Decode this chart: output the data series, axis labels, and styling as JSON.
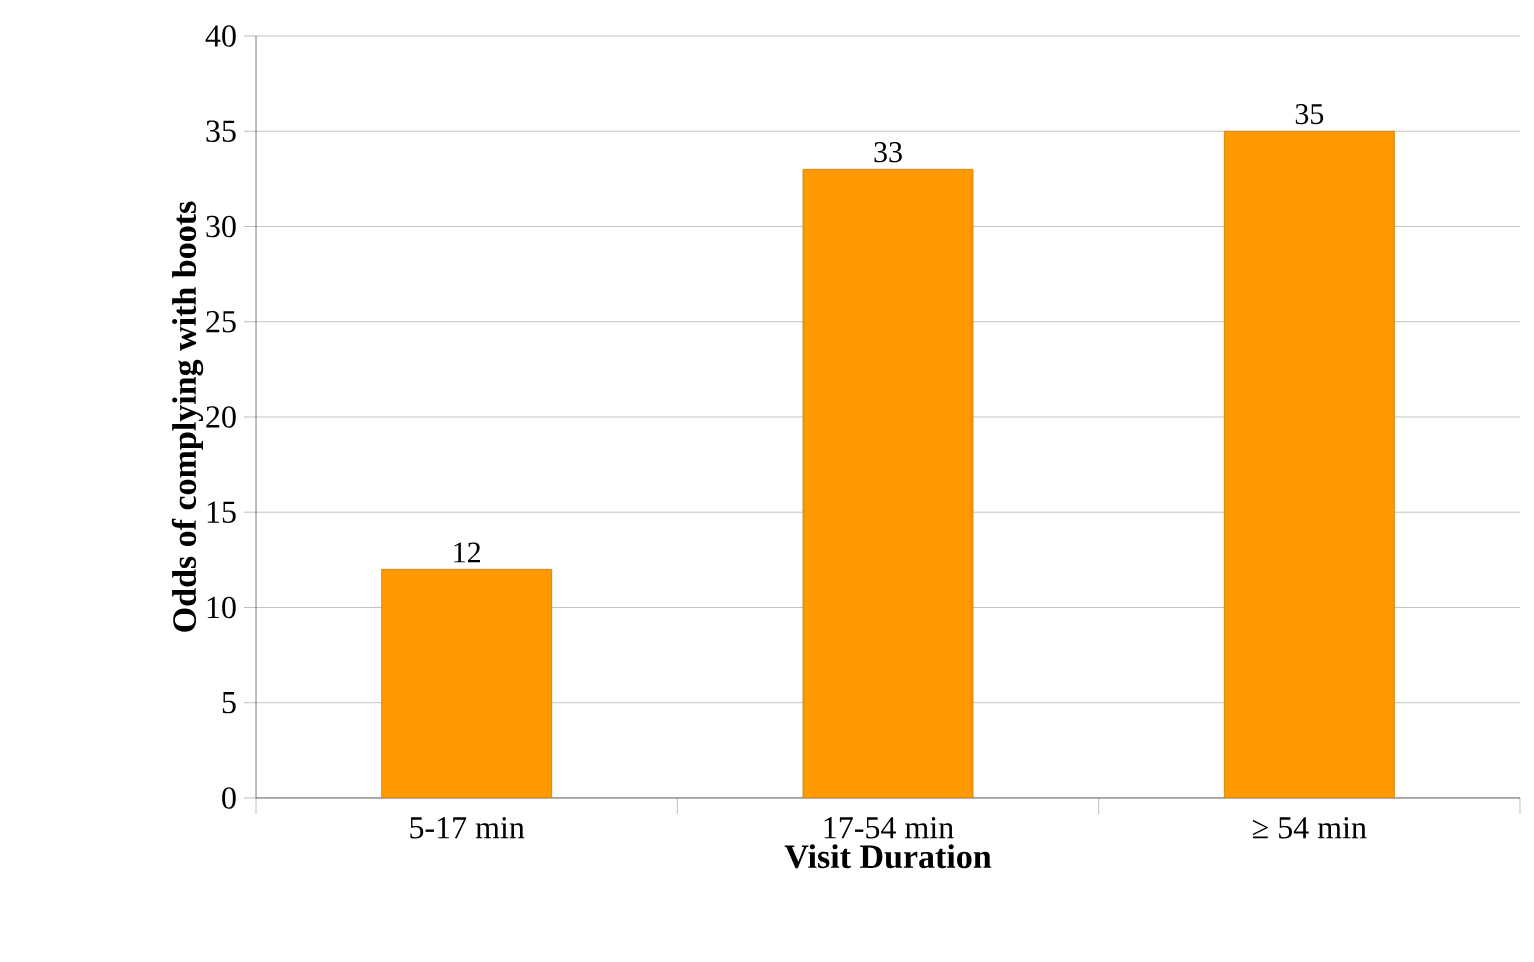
{
  "chart_data": {
    "type": "bar",
    "xlabel": "Visit Duration",
    "ylabel": "Odds of complying with boots",
    "categories": [
      "5-17 min",
      "17-54 min",
      "≥ 54 min"
    ],
    "values": [
      12,
      33,
      35
    ],
    "color": "#ff9900",
    "ylim": [
      0,
      40
    ],
    "yticks": [
      0,
      5,
      10,
      15,
      20,
      25,
      30,
      35,
      40
    ],
    "grid": "y",
    "data_labels": true
  }
}
